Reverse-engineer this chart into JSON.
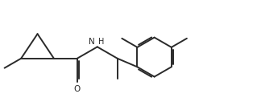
{
  "bg_color": "#ffffff",
  "line_color": "#2a2a2a",
  "line_width": 1.4,
  "dpi": 100,
  "figsize": [
    3.24,
    1.32
  ],
  "xlim": [
    0,
    9.5
  ],
  "ylim": [
    0,
    3.5
  ]
}
